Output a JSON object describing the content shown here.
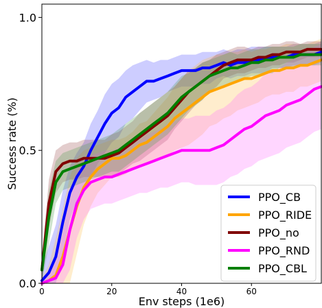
{
  "chart_data": {
    "type": "line",
    "title": "",
    "xlabel": "Env steps (1e6)",
    "ylabel": "Success rate (%)",
    "xlim": [
      0,
      80
    ],
    "ylim": [
      0,
      1.05
    ],
    "xticks": [
      0,
      20,
      40,
      60
    ],
    "xtick_labels": [
      "0",
      "20",
      "40",
      "60"
    ],
    "yticks": [
      0.0,
      0.5,
      1.0
    ],
    "ytick_labels": [
      "0.0",
      "0.5",
      "1.0"
    ],
    "grid": false,
    "legend_position": "bottom-right",
    "x": [
      0,
      2,
      4,
      6,
      8,
      10,
      12,
      14,
      16,
      18,
      20,
      22,
      24,
      26,
      28,
      30,
      32,
      34,
      36,
      38,
      40,
      42,
      44,
      46,
      48,
      50,
      52,
      54,
      56,
      58,
      60,
      62,
      64,
      66,
      68,
      70,
      72,
      74,
      76,
      78,
      80
    ],
    "series": [
      {
        "name": "PPO_CB",
        "color": "#0000ff",
        "band_color": "#4a4aff",
        "values": [
          0.01,
          0.04,
          0.1,
          0.23,
          0.34,
          0.4,
          0.44,
          0.5,
          0.55,
          0.6,
          0.64,
          0.66,
          0.7,
          0.72,
          0.74,
          0.76,
          0.76,
          0.77,
          0.78,
          0.79,
          0.8,
          0.8,
          0.8,
          0.81,
          0.81,
          0.82,
          0.83,
          0.82,
          0.83,
          0.83,
          0.84,
          0.84,
          0.84,
          0.85,
          0.85,
          0.85,
          0.86,
          0.86,
          0.86,
          0.86,
          0.87
        ],
        "band": [
          0.05,
          0.1,
          0.12,
          0.12,
          0.1,
          0.09,
          0.09,
          0.1,
          0.1,
          0.11,
          0.11,
          0.11,
          0.1,
          0.1,
          0.09,
          0.08,
          0.07,
          0.07,
          0.06,
          0.06,
          0.06,
          0.06,
          0.06,
          0.06,
          0.06,
          0.05,
          0.05,
          0.05,
          0.05,
          0.05,
          0.05,
          0.05,
          0.05,
          0.04,
          0.04,
          0.04,
          0.04,
          0.04,
          0.04,
          0.04,
          0.04
        ]
      },
      {
        "name": "PPO_RIDE",
        "color": "#ffa500",
        "band_color": "#ffc04d",
        "values": [
          0.0,
          0.01,
          0.03,
          0.1,
          0.2,
          0.29,
          0.36,
          0.4,
          0.43,
          0.45,
          0.47,
          0.47,
          0.48,
          0.5,
          0.52,
          0.53,
          0.55,
          0.57,
          0.59,
          0.62,
          0.64,
          0.66,
          0.68,
          0.7,
          0.72,
          0.73,
          0.74,
          0.75,
          0.76,
          0.77,
          0.77,
          0.78,
          0.79,
          0.8,
          0.8,
          0.81,
          0.81,
          0.82,
          0.82,
          0.83,
          0.84
        ],
        "band": [
          0.02,
          0.06,
          0.14,
          0.18,
          0.2,
          0.18,
          0.14,
          0.11,
          0.09,
          0.08,
          0.07,
          0.07,
          0.07,
          0.07,
          0.08,
          0.08,
          0.09,
          0.1,
          0.11,
          0.12,
          0.13,
          0.14,
          0.14,
          0.14,
          0.13,
          0.13,
          0.12,
          0.12,
          0.11,
          0.11,
          0.1,
          0.1,
          0.09,
          0.09,
          0.09,
          0.09,
          0.09,
          0.08,
          0.08,
          0.08,
          0.08
        ]
      },
      {
        "name": "PPO_no",
        "color": "#800000",
        "band_color": "#9a4a4a",
        "values": [
          0.05,
          0.3,
          0.42,
          0.45,
          0.46,
          0.46,
          0.47,
          0.47,
          0.47,
          0.47,
          0.48,
          0.49,
          0.51,
          0.53,
          0.55,
          0.57,
          0.59,
          0.61,
          0.63,
          0.66,
          0.69,
          0.72,
          0.74,
          0.76,
          0.78,
          0.8,
          0.82,
          0.83,
          0.84,
          0.84,
          0.84,
          0.85,
          0.85,
          0.86,
          0.86,
          0.87,
          0.87,
          0.87,
          0.88,
          0.88,
          0.88
        ],
        "band": [
          0.05,
          0.09,
          0.08,
          0.07,
          0.07,
          0.07,
          0.07,
          0.07,
          0.07,
          0.07,
          0.08,
          0.08,
          0.08,
          0.08,
          0.09,
          0.09,
          0.09,
          0.09,
          0.09,
          0.08,
          0.08,
          0.08,
          0.07,
          0.07,
          0.06,
          0.06,
          0.05,
          0.05,
          0.05,
          0.05,
          0.04,
          0.04,
          0.04,
          0.04,
          0.04,
          0.04,
          0.04,
          0.03,
          0.03,
          0.03,
          0.03
        ]
      },
      {
        "name": "PPO_RND",
        "color": "#ff00ff",
        "band_color": "#ff6cff",
        "values": [
          0.0,
          0.01,
          0.02,
          0.07,
          0.2,
          0.3,
          0.35,
          0.38,
          0.39,
          0.4,
          0.4,
          0.41,
          0.42,
          0.43,
          0.44,
          0.45,
          0.46,
          0.47,
          0.48,
          0.49,
          0.5,
          0.5,
          0.5,
          0.5,
          0.5,
          0.51,
          0.52,
          0.54,
          0.56,
          0.58,
          0.59,
          0.61,
          0.63,
          0.64,
          0.65,
          0.67,
          0.68,
          0.69,
          0.71,
          0.73,
          0.74
        ],
        "band": [
          0.01,
          0.03,
          0.07,
          0.12,
          0.15,
          0.13,
          0.11,
          0.1,
          0.1,
          0.1,
          0.1,
          0.1,
          0.1,
          0.1,
          0.1,
          0.11,
          0.11,
          0.11,
          0.12,
          0.12,
          0.12,
          0.12,
          0.13,
          0.13,
          0.13,
          0.14,
          0.14,
          0.14,
          0.15,
          0.15,
          0.15,
          0.15,
          0.16,
          0.16,
          0.16,
          0.16,
          0.16,
          0.16,
          0.16,
          0.16,
          0.16
        ]
      },
      {
        "name": "PPO_CBL",
        "color": "#008000",
        "band_color": "#4a9a4a",
        "values": [
          0.05,
          0.25,
          0.38,
          0.42,
          0.43,
          0.44,
          0.45,
          0.46,
          0.47,
          0.48,
          0.49,
          0.5,
          0.52,
          0.54,
          0.56,
          0.58,
          0.6,
          0.62,
          0.64,
          0.67,
          0.7,
          0.72,
          0.74,
          0.76,
          0.78,
          0.79,
          0.8,
          0.81,
          0.81,
          0.82,
          0.83,
          0.83,
          0.84,
          0.84,
          0.85,
          0.85,
          0.85,
          0.86,
          0.86,
          0.86,
          0.86
        ],
        "band": [
          0.05,
          0.1,
          0.08,
          0.07,
          0.07,
          0.07,
          0.07,
          0.07,
          0.07,
          0.07,
          0.07,
          0.08,
          0.08,
          0.08,
          0.08,
          0.08,
          0.08,
          0.08,
          0.08,
          0.08,
          0.08,
          0.07,
          0.07,
          0.07,
          0.06,
          0.06,
          0.06,
          0.06,
          0.05,
          0.05,
          0.05,
          0.05,
          0.05,
          0.05,
          0.04,
          0.04,
          0.04,
          0.04,
          0.04,
          0.04,
          0.04
        ]
      }
    ]
  }
}
